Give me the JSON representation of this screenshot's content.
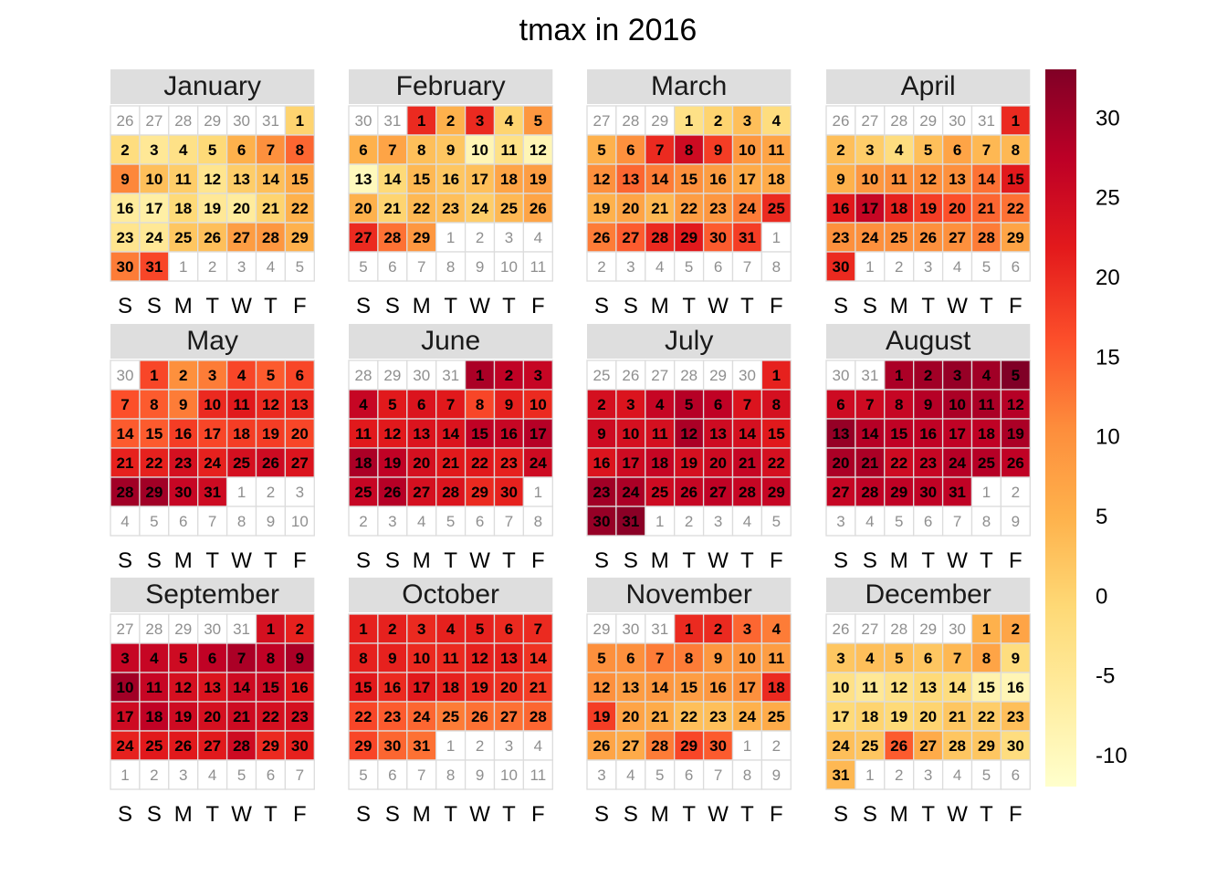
{
  "chart_data": {
    "type": "heatmap",
    "title": "tmax in 2016",
    "year": 2016,
    "colorbar": {
      "ticks": [
        "-10",
        "-5",
        "0",
        "5",
        "10",
        "15",
        "20",
        "25",
        "30"
      ],
      "range": [
        -12,
        33
      ],
      "palette": [
        "#ffffcc",
        "#ffeda0",
        "#fed976",
        "#feb24c",
        "#fd8d3c",
        "#fc4e2a",
        "#e31a1c",
        "#bd0026",
        "#800026"
      ]
    },
    "weekday_labels": [
      "S",
      "S",
      "M",
      "T",
      "W",
      "T",
      "F"
    ],
    "months": [
      {
        "name": "January",
        "values": [
          0,
          -2,
          -5,
          -3,
          -1,
          5,
          10,
          14,
          11,
          3,
          1,
          -4,
          1,
          3,
          6,
          -6,
          -7,
          -1,
          -5,
          -6,
          0,
          5,
          -4,
          -5,
          2,
          3,
          8,
          9,
          5,
          12,
          17
        ]
      },
      {
        "name": "February",
        "values": [
          20,
          5,
          20,
          0,
          9,
          5,
          7,
          3,
          2,
          -9,
          -3,
          -9,
          -10,
          -1,
          4,
          2,
          3,
          7,
          8,
          5,
          0,
          4,
          3,
          1,
          4,
          7,
          20,
          13,
          9,
          10
        ]
      },
      {
        "name": "March",
        "values": [
          -3,
          0,
          3,
          -2,
          5,
          10,
          20,
          25,
          18,
          9,
          7,
          10,
          14,
          12,
          10,
          8,
          6,
          6,
          5,
          7,
          4,
          8,
          9,
          12,
          20,
          12,
          15,
          20,
          22,
          15,
          18
        ]
      },
      {
        "name": "April",
        "values": [
          20,
          3,
          1,
          -2,
          3,
          7,
          4,
          4,
          5,
          9,
          10,
          10,
          10,
          13,
          22,
          22,
          26,
          21,
          18,
          16,
          14,
          13,
          10,
          10,
          10,
          10,
          10,
          12,
          7,
          20
        ]
      },
      {
        "name": "May",
        "values": [
          17,
          10,
          12,
          17,
          15,
          17,
          16,
          15,
          12,
          20,
          22,
          20,
          20,
          15,
          15,
          18,
          17,
          18,
          18,
          17,
          21,
          21,
          24,
          21,
          24,
          25,
          23,
          30,
          30,
          26,
          25
        ]
      },
      {
        "name": "June",
        "values": [
          29,
          27,
          26,
          26,
          22,
          23,
          22,
          17,
          21,
          20,
          22,
          22,
          23,
          23,
          27,
          26,
          28,
          29,
          27,
          24,
          22,
          22,
          21,
          25,
          26,
          28,
          24,
          23,
          20,
          21
        ]
      },
      {
        "name": "July",
        "values": [
          21,
          24,
          23,
          26,
          28,
          27,
          23,
          24,
          25,
          24,
          24,
          29,
          25,
          24,
          22,
          23,
          25,
          26,
          24,
          25,
          26,
          24,
          30,
          29,
          25,
          26,
          27,
          26,
          26,
          31,
          32
        ]
      },
      {
        "name": "August",
        "values": [
          29,
          30,
          31,
          30,
          33,
          25,
          25,
          26,
          28,
          29,
          29,
          28,
          31,
          28,
          27,
          27,
          27,
          27,
          29,
          29,
          29,
          25,
          26,
          28,
          28,
          27,
          26,
          27,
          27,
          27,
          27
        ]
      },
      {
        "name": "September",
        "values": [
          24,
          21,
          26,
          26,
          25,
          27,
          29,
          27,
          29,
          30,
          26,
          24,
          23,
          25,
          25,
          22,
          25,
          27,
          25,
          24,
          25,
          24,
          24,
          21,
          22,
          22,
          22,
          25,
          20,
          21
        ]
      },
      {
        "name": "October",
        "values": [
          21,
          21,
          20,
          21,
          21,
          20,
          20,
          21,
          21,
          20,
          20,
          21,
          21,
          19,
          22,
          20,
          22,
          21,
          20,
          19,
          18,
          17,
          15,
          14,
          12,
          13,
          13,
          14,
          17,
          14,
          13
        ]
      },
      {
        "name": "November",
        "values": [
          20,
          20,
          14,
          12,
          10,
          10,
          12,
          12,
          9,
          9,
          8,
          10,
          8,
          9,
          8,
          9,
          10,
          20,
          18,
          7,
          6,
          3,
          3,
          5,
          6,
          7,
          6,
          12,
          17,
          15
        ]
      },
      {
        "name": "December",
        "values": [
          5,
          7,
          2,
          3,
          3,
          2,
          4,
          7,
          -2,
          -3,
          -5,
          -3,
          -1,
          -2,
          -8,
          -9,
          -1,
          0,
          -1,
          0,
          2,
          1,
          3,
          3,
          2,
          15,
          6,
          2,
          2,
          -2,
          4
        ]
      }
    ]
  }
}
